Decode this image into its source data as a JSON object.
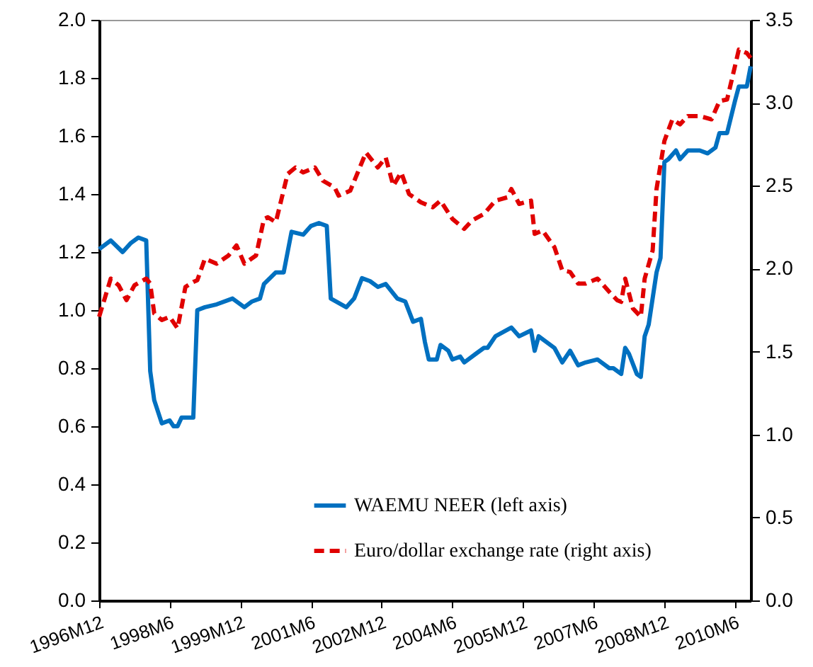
{
  "chart_data": {
    "type": "line",
    "legend": "bottom",
    "grid": false,
    "marker": "none",
    "xlim": [
      "1996-12",
      "2010-10"
    ],
    "xticks": [
      {
        "value": "1996-12",
        "label": "1996M12"
      },
      {
        "value": "1998-06",
        "label": "1998M6"
      },
      {
        "value": "1999-12",
        "label": "1999M12"
      },
      {
        "value": "2001-06",
        "label": "2001M6"
      },
      {
        "value": "2002-12",
        "label": "2002M12"
      },
      {
        "value": "2004-06",
        "label": "2004M6"
      },
      {
        "value": "2005-12",
        "label": "2005M12"
      },
      {
        "value": "2007-06",
        "label": "2007M6"
      },
      {
        "value": "2008-12",
        "label": "2008M12"
      },
      {
        "value": "2010-06",
        "label": "2010M6"
      }
    ],
    "ylim": [
      0,
      2
    ],
    "yticks": [
      {
        "value": 0,
        "label": "0.0"
      },
      {
        "value": 0.2,
        "label": "0.2"
      },
      {
        "value": 0.4,
        "label": "0.4"
      },
      {
        "value": 0.6,
        "label": "0.6"
      },
      {
        "value": 0.8,
        "label": "0.8"
      },
      {
        "value": 1,
        "label": "1.0"
      },
      {
        "value": 1.2,
        "label": "1.2"
      },
      {
        "value": 1.4,
        "label": "1.4"
      },
      {
        "value": 1.6,
        "label": "1.6"
      },
      {
        "value": 1.8,
        "label": "1.8"
      },
      {
        "value": 2,
        "label": "2.0"
      }
    ],
    "y2lim": [
      0,
      3.5
    ],
    "y2ticks": [
      {
        "value": 0,
        "label": "0.0"
      },
      {
        "value": 0.5,
        "label": "0.5"
      },
      {
        "value": 1,
        "label": "1.0"
      },
      {
        "value": 1.5,
        "label": "1.5"
      },
      {
        "value": 2,
        "label": "2.0"
      },
      {
        "value": 2.5,
        "label": "2.5"
      },
      {
        "value": 3,
        "label": "3.0"
      },
      {
        "value": 3.5,
        "label": "3.5"
      }
    ],
    "series": [
      {
        "name": "WAEMU NEER (left axis)",
        "color": "#0070c0",
        "line_style": "solid",
        "x": [
          "1996-12",
          "1997-03",
          "1997-06",
          "1997-08",
          "1997-10",
          "1997-12",
          "1998-01",
          "1998-02",
          "1998-04",
          "1998-06",
          "1998-07",
          "1998-08",
          "1998-09",
          "1998-12",
          "1999-01",
          "1999-03",
          "1999-06",
          "1999-10",
          "2000-01",
          "2000-03",
          "2000-05",
          "2000-06",
          "2000-09",
          "2000-11",
          "2001-01",
          "2001-04",
          "2001-06",
          "2001-08",
          "2001-10",
          "2001-11",
          "2002-03",
          "2002-05",
          "2002-07",
          "2002-09",
          "2002-11",
          "2003-01",
          "2003-04",
          "2003-06",
          "2003-08",
          "2003-10",
          "2003-11",
          "2003-12",
          "2004-02",
          "2004-03",
          "2004-05",
          "2004-06",
          "2004-08",
          "2004-09",
          "2004-12",
          "2005-02",
          "2005-03",
          "2005-05",
          "2005-09",
          "2005-11",
          "2006-02",
          "2006-03",
          "2006-04",
          "2006-06",
          "2006-08",
          "2006-10",
          "2006-12",
          "2007-02",
          "2007-04",
          "2007-07",
          "2007-10",
          "2007-11",
          "2008-01",
          "2008-02",
          "2008-03",
          "2008-05",
          "2008-06",
          "2008-07",
          "2008-08",
          "2008-10",
          "2008-11",
          "2008-12",
          "2009-01",
          "2009-03",
          "2009-04",
          "2009-06",
          "2009-09",
          "2009-11",
          "2010-01",
          "2010-02",
          "2010-04",
          "2010-06",
          "2010-07",
          "2010-09",
          "2010-10"
        ],
        "values": [
          1.21,
          1.24,
          1.2,
          1.23,
          1.25,
          1.24,
          0.79,
          0.69,
          0.61,
          0.62,
          0.6,
          0.6,
          0.63,
          0.63,
          1.0,
          1.01,
          1.02,
          1.04,
          1.01,
          1.03,
          1.04,
          1.09,
          1.13,
          1.13,
          1.27,
          1.26,
          1.29,
          1.3,
          1.29,
          1.04,
          1.01,
          1.04,
          1.11,
          1.1,
          1.08,
          1.09,
          1.04,
          1.03,
          0.96,
          0.97,
          0.89,
          0.83,
          0.83,
          0.88,
          0.86,
          0.83,
          0.84,
          0.82,
          0.85,
          0.87,
          0.87,
          0.91,
          0.94,
          0.91,
          0.93,
          0.86,
          0.91,
          0.89,
          0.87,
          0.82,
          0.86,
          0.81,
          0.82,
          0.83,
          0.8,
          0.8,
          0.78,
          0.87,
          0.85,
          0.78,
          0.77,
          0.91,
          0.95,
          1.13,
          1.18,
          1.51,
          1.52,
          1.55,
          1.52,
          1.55,
          1.55,
          1.54,
          1.56,
          1.61,
          1.61,
          1.72,
          1.77,
          1.77,
          1.84
        ]
      },
      {
        "name": "Euro/dollar exchange rate (right axis)",
        "color": "#e00000",
        "line_style": "dashed",
        "axis": "y2",
        "x": [
          "1996-12",
          "1997-03",
          "1997-05",
          "1997-07",
          "1997-09",
          "1997-12",
          "1998-01",
          "1998-02",
          "1998-04",
          "1998-06",
          "1998-08",
          "1998-10",
          "1998-12",
          "1999-01",
          "1999-03",
          "1999-06",
          "1999-09",
          "1999-11",
          "2000-01",
          "2000-04",
          "2000-06",
          "2000-07",
          "2000-09",
          "2000-12",
          "2001-02",
          "2001-04",
          "2001-07",
          "2001-09",
          "2001-12",
          "2002-01",
          "2002-04",
          "2002-08",
          "2002-11",
          "2003-01",
          "2003-03",
          "2003-05",
          "2003-07",
          "2003-10",
          "2004-01",
          "2004-03",
          "2004-06",
          "2004-09",
          "2004-11",
          "2005-02",
          "2005-05",
          "2005-08",
          "2005-09",
          "2005-11",
          "2006-02",
          "2006-03",
          "2006-05",
          "2006-08",
          "2006-10",
          "2006-12",
          "2007-02",
          "2007-04",
          "2007-07",
          "2007-10",
          "2007-12",
          "2008-01",
          "2008-02",
          "2008-04",
          "2008-06",
          "2008-07",
          "2008-09",
          "2008-10",
          "2008-12",
          "2009-02",
          "2009-04",
          "2009-06",
          "2009-09",
          "2009-12",
          "2010-02",
          "2010-04",
          "2010-06",
          "2010-07",
          "2010-09",
          "2010-10"
        ],
        "values": [
          1.71,
          1.94,
          1.9,
          1.81,
          1.9,
          1.94,
          1.91,
          1.73,
          1.69,
          1.71,
          1.64,
          1.89,
          1.92,
          1.93,
          2.06,
          2.03,
          2.08,
          2.14,
          2.03,
          2.08,
          2.3,
          2.31,
          2.28,
          2.57,
          2.61,
          2.58,
          2.61,
          2.53,
          2.49,
          2.44,
          2.47,
          2.7,
          2.61,
          2.67,
          2.5,
          2.58,
          2.45,
          2.4,
          2.37,
          2.41,
          2.3,
          2.24,
          2.29,
          2.33,
          2.41,
          2.43,
          2.48,
          2.39,
          2.41,
          2.21,
          2.23,
          2.13,
          1.99,
          1.98,
          1.91,
          1.91,
          1.94,
          1.86,
          1.81,
          1.8,
          1.94,
          1.76,
          1.71,
          1.94,
          2.11,
          2.48,
          2.77,
          2.9,
          2.87,
          2.92,
          2.92,
          2.9,
          3.01,
          3.02,
          3.22,
          3.32,
          3.3,
          3.27
        ]
      }
    ]
  }
}
